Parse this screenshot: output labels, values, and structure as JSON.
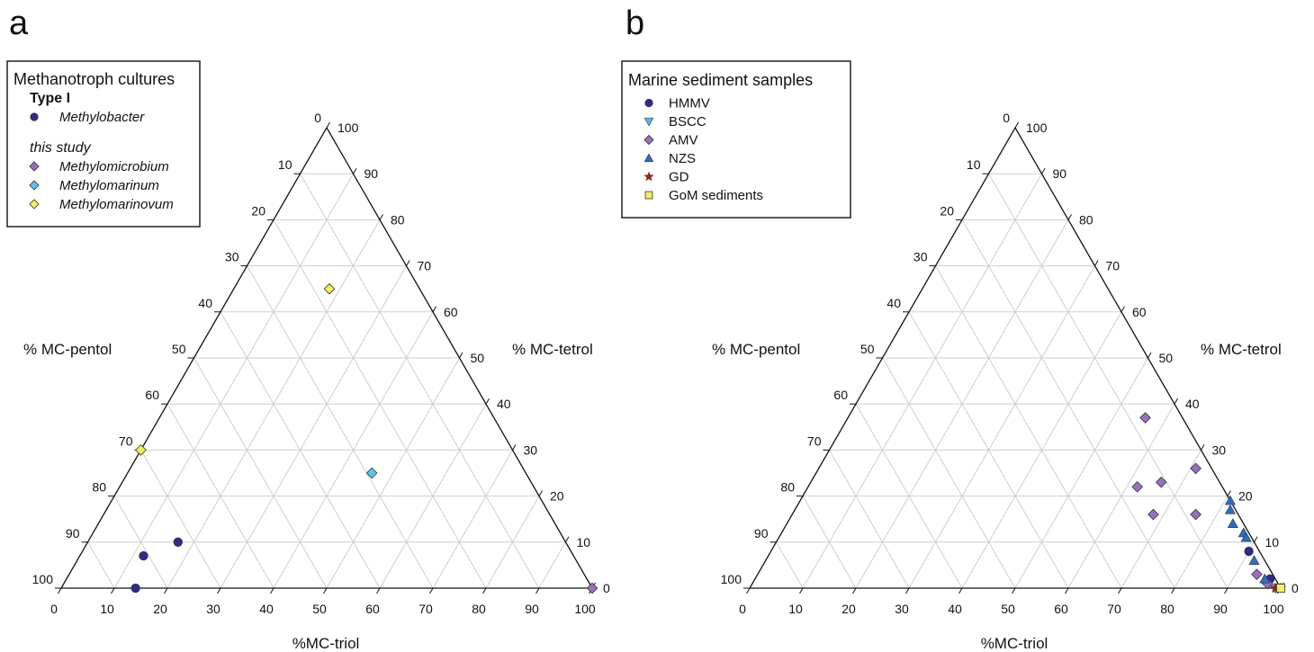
{
  "panels": [
    {
      "letter": "a",
      "legend": {
        "title": "Methanotroph cultures",
        "groups": [
          {
            "label": "Type I",
            "style": "bold",
            "entries": [
              {
                "label": "Methylobacter",
                "italic": true,
                "marker": "circle",
                "color": "#2e2a8f"
              }
            ]
          },
          {
            "label": "this study",
            "style": "italic",
            "entries": [
              {
                "label": "Methylomicrobium",
                "italic": true,
                "marker": "diamond",
                "color": "#9a6fc1"
              },
              {
                "label": "Methylomarinum",
                "italic": true,
                "marker": "diamond",
                "color": "#56c8ec"
              },
              {
                "label": "Methylomarinovum",
                "italic": true,
                "marker": "diamond",
                "color": "#f7ee5a"
              }
            ]
          }
        ]
      },
      "axis_titles": {
        "left": "% MC-pentol",
        "right": "% MC-tetrol",
        "bottom": "%MC-triol"
      },
      "tick_values": [
        "0",
        "10",
        "20",
        "30",
        "40",
        "50",
        "60",
        "70",
        "80",
        "90",
        "100"
      ]
    },
    {
      "letter": "b",
      "legend": {
        "title": "Marine sediment samples",
        "groups": [
          {
            "label": "",
            "style": "normal",
            "entries": [
              {
                "label": "HMMV",
                "italic": false,
                "marker": "circle",
                "color": "#2e2a8f"
              },
              {
                "label": "BSCC",
                "italic": false,
                "marker": "triangle-down",
                "color": "#5ab4e6"
              },
              {
                "label": "AMV",
                "italic": false,
                "marker": "diamond",
                "color": "#9a6fc1"
              },
              {
                "label": "NZS",
                "italic": false,
                "marker": "triangle-up",
                "color": "#2a6ec8"
              },
              {
                "label": "GD",
                "italic": false,
                "marker": "star",
                "color": "#8b2a1e"
              },
              {
                "label": "GoM sediments",
                "italic": false,
                "marker": "square",
                "color": "#f7ee5a"
              }
            ]
          }
        ]
      },
      "axis_titles": {
        "left": "% MC-pentol",
        "right": "% MC-tetrol",
        "bottom": "%MC-triol"
      },
      "tick_values": [
        "0",
        "10",
        "20",
        "30",
        "40",
        "50",
        "60",
        "70",
        "80",
        "90",
        "100"
      ]
    }
  ],
  "chart_data": [
    {
      "type": "scatter",
      "subtype": "ternary",
      "panel": "a",
      "axes": {
        "bottom": "%MC-triol",
        "left": "% MC-pentol",
        "right": "% MC-tetrol"
      },
      "range": [
        0,
        100
      ],
      "grid": true,
      "legend_position": "top-left",
      "series": [
        {
          "name": "Methylobacter",
          "marker": "circle",
          "color": "#2e2a8f",
          "points": [
            {
              "triol": 14,
              "tetrol": 0,
              "pentol": 86
            },
            {
              "triol": 12,
              "tetrol": 7,
              "pentol": 81
            },
            {
              "triol": 17,
              "tetrol": 10,
              "pentol": 73
            }
          ]
        },
        {
          "name": "Methylomicrobium",
          "marker": "diamond",
          "color": "#9a6fc1",
          "points": [
            {
              "triol": 100,
              "tetrol": 0,
              "pentol": 0
            }
          ]
        },
        {
          "name": "Methylomarinum",
          "marker": "diamond",
          "color": "#56c8ec",
          "points": [
            {
              "triol": 46,
              "tetrol": 25,
              "pentol": 29
            }
          ]
        },
        {
          "name": "Methylomarinovum",
          "marker": "diamond",
          "color": "#f7ee5a",
          "points": [
            {
              "triol": 0,
              "tetrol": 30,
              "pentol": 70
            },
            {
              "triol": 18,
              "tetrol": 65,
              "pentol": 17
            }
          ]
        }
      ]
    },
    {
      "type": "scatter",
      "subtype": "ternary",
      "panel": "b",
      "axes": {
        "bottom": "%MC-triol",
        "left": "% MC-pentol",
        "right": "% MC-tetrol"
      },
      "range": [
        0,
        100
      ],
      "grid": true,
      "legend_position": "top-left",
      "series": [
        {
          "name": "HMMV",
          "marker": "circle",
          "color": "#2e2a8f",
          "points": [
            {
              "triol": 90,
              "tetrol": 8,
              "pentol": 2
            },
            {
              "triol": 97,
              "tetrol": 2,
              "pentol": 1
            }
          ]
        },
        {
          "name": "BSCC",
          "marker": "triangle-down",
          "color": "#5ab4e6",
          "points": [
            {
              "triol": 99,
              "tetrol": 0,
              "pentol": 1
            }
          ]
        },
        {
          "name": "AMV",
          "marker": "diamond",
          "color": "#9a6fc1",
          "points": [
            {
              "triol": 56,
              "tetrol": 37,
              "pentol": 7
            },
            {
              "triol": 71,
              "tetrol": 26,
              "pentol": 3
            },
            {
              "triol": 66,
              "tetrol": 23,
              "pentol": 11
            },
            {
              "triol": 62,
              "tetrol": 22,
              "pentol": 16
            },
            {
              "triol": 76,
              "tetrol": 16,
              "pentol": 8
            },
            {
              "triol": 68,
              "tetrol": 16,
              "pentol": 16
            },
            {
              "triol": 94,
              "tetrol": 3,
              "pentol": 3
            },
            {
              "triol": 97,
              "tetrol": 1,
              "pentol": 2
            }
          ]
        },
        {
          "name": "NZS",
          "marker": "triangle-up",
          "color": "#2a6ec8",
          "points": [
            {
              "triol": 81,
              "tetrol": 19,
              "pentol": 0
            },
            {
              "triol": 82,
              "tetrol": 17,
              "pentol": 1
            },
            {
              "triol": 84,
              "tetrol": 14,
              "pentol": 2
            },
            {
              "triol": 87,
              "tetrol": 12,
              "pentol": 1
            },
            {
              "triol": 88,
              "tetrol": 11,
              "pentol": 1
            },
            {
              "triol": 92,
              "tetrol": 6,
              "pentol": 2
            },
            {
              "triol": 96,
              "tetrol": 2,
              "pentol": 2
            }
          ]
        },
        {
          "name": "GD",
          "marker": "star",
          "color": "#8b2a1e",
          "points": [
            {
              "triol": 100,
              "tetrol": 0,
              "pentol": 0
            },
            {
              "triol": 99,
              "tetrol": 0,
              "pentol": 1
            }
          ]
        },
        {
          "name": "GoM sediments",
          "marker": "square",
          "color": "#f7ee5a",
          "points": [
            {
              "triol": 100,
              "tetrol": 0,
              "pentol": 0
            }
          ]
        }
      ]
    }
  ]
}
